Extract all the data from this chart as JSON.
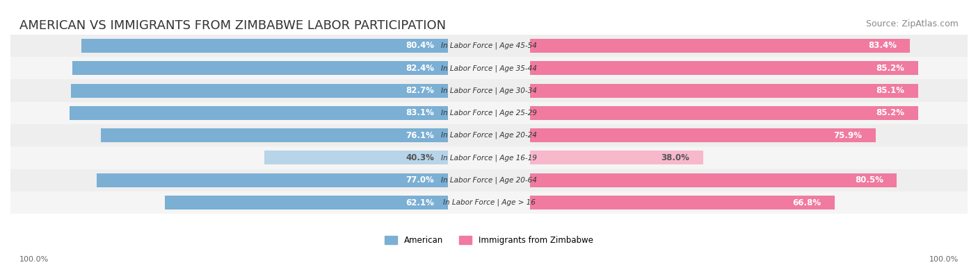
{
  "title": "AMERICAN VS IMMIGRANTS FROM ZIMBABWE LABOR PARTICIPATION",
  "source": "Source: ZipAtlas.com",
  "categories": [
    "In Labor Force | Age > 16",
    "In Labor Force | Age 20-64",
    "In Labor Force | Age 16-19",
    "In Labor Force | Age 20-24",
    "In Labor Force | Age 25-29",
    "In Labor Force | Age 30-34",
    "In Labor Force | Age 35-44",
    "In Labor Force | Age 45-54"
  ],
  "american_values": [
    62.1,
    77.0,
    40.3,
    76.1,
    83.1,
    82.7,
    82.4,
    80.4
  ],
  "zimbabwe_values": [
    66.8,
    80.5,
    38.0,
    75.9,
    85.2,
    85.1,
    85.2,
    83.4
  ],
  "american_color": "#7bafd4",
  "american_color_light": "#b8d4e8",
  "zimbabwe_color": "#f07aa0",
  "zimbabwe_color_light": "#f7b8cc",
  "bar_bg_color": "#f0f0f0",
  "row_bg_colors": [
    "#f5f5f5",
    "#eeeeee"
  ],
  "label_color_dark": "#555555",
  "label_color_white": "#ffffff",
  "axis_label": "100.0%",
  "legend_american": "American",
  "legend_zimbabwe": "Immigrants from Zimbabwe",
  "title_fontsize": 13,
  "source_fontsize": 9,
  "bar_label_fontsize": 8.5,
  "category_label_fontsize": 7.5,
  "axis_fontsize": 8,
  "legend_fontsize": 8.5
}
